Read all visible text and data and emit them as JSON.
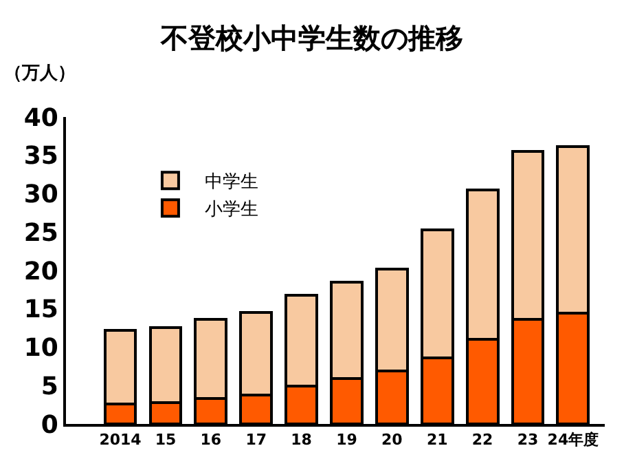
{
  "chart_data": {
    "type": "bar",
    "title": "不登校小中学生数の推移",
    "ylabel": "（万人）",
    "categories": [
      "2014",
      "15",
      "16",
      "17",
      "18",
      "19",
      "20",
      "21",
      "22",
      "23",
      "24年度"
    ],
    "stacked": true,
    "series": [
      {
        "name": "小学生",
        "color": "#ff5a00",
        "values": [
          2.6,
          2.8,
          3.3,
          3.8,
          4.9,
          5.9,
          6.9,
          8.6,
          11.0,
          13.6,
          14.4
        ]
      },
      {
        "name": "中学生",
        "color": "#f8c9a0",
        "values": [
          9.6,
          9.8,
          10.3,
          10.7,
          11.9,
          12.6,
          13.3,
          16.7,
          19.5,
          21.9,
          21.7
        ]
      }
    ],
    "ylim": [
      0,
      40
    ],
    "yticks": [
      0,
      5,
      10,
      15,
      20,
      25,
      30,
      35,
      40
    ],
    "legend": "top left"
  }
}
